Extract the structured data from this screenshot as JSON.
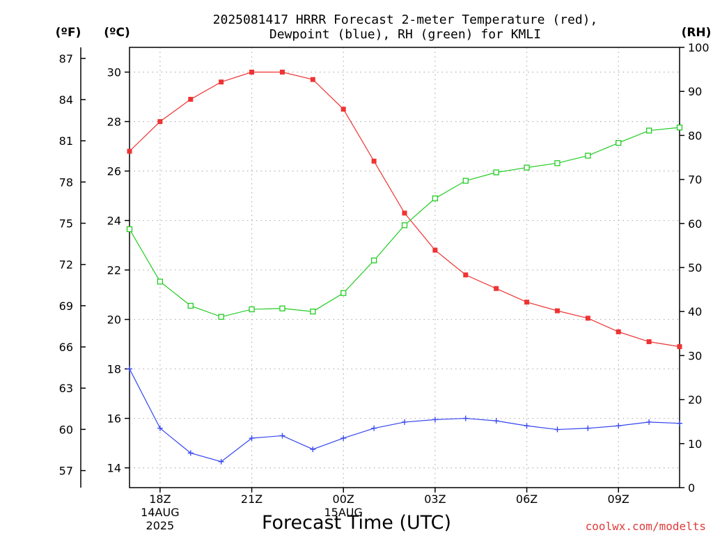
{
  "chart_data": {
    "type": "line",
    "title_lines": [
      "2025081417 HRRR Forecast 2-meter Temperature (red),",
      "Dewpoint (blue), RH (green) for KMLI"
    ],
    "unit_labels": {
      "fahrenheit": "(ºF)",
      "celsius": "(ºC)",
      "rh": "(RH)"
    },
    "xlabel": "Forecast Time (UTC)",
    "credit": "coolwx.com/modelts",
    "x_hours": [
      17,
      18,
      19,
      20,
      21,
      22,
      23,
      24,
      25,
      26,
      27,
      28,
      29,
      30,
      31,
      32,
      33,
      34,
      35
    ],
    "x_range": [
      17,
      35
    ],
    "x_ticks": [
      {
        "hour": 18,
        "lines": [
          "18Z",
          "14AUG",
          "2025"
        ]
      },
      {
        "hour": 21,
        "lines": [
          "21Z"
        ]
      },
      {
        "hour": 24,
        "lines": [
          "00Z",
          "15AUG"
        ]
      },
      {
        "hour": 27,
        "lines": [
          "03Z"
        ]
      },
      {
        "hour": 30,
        "lines": [
          "06Z"
        ]
      },
      {
        "hour": 33,
        "lines": [
          "09Z"
        ]
      }
    ],
    "y_celsius_range": [
      13.2,
      31.0
    ],
    "y_celsius_ticks": [
      "14",
      "16",
      "18",
      "20",
      "22",
      "24",
      "26",
      "28",
      "30"
    ],
    "y_fahrenheit_ticks": [
      "57",
      "60",
      "63",
      "66",
      "69",
      "72",
      "75",
      "78",
      "81",
      "84",
      "87"
    ],
    "y_rh_range": [
      0,
      100
    ],
    "y_rh_ticks": [
      "0",
      "10",
      "20",
      "30",
      "40",
      "50",
      "60",
      "70",
      "80",
      "90",
      "100"
    ],
    "grid": true,
    "series": [
      {
        "name": "Temperature",
        "axis": "celsius",
        "color": "#ee3333",
        "marker": "filled-square",
        "values": [
          26.8,
          28.0,
          28.9,
          29.6,
          30.0,
          30.0,
          29.7,
          28.5,
          26.4,
          24.3,
          22.8,
          21.8,
          21.25,
          20.7,
          20.35,
          20.05,
          19.5,
          19.1,
          18.9
        ]
      },
      {
        "name": "Dewpoint",
        "axis": "celsius",
        "color": "#3344ee",
        "marker": "plus",
        "values": [
          18.0,
          15.6,
          14.6,
          14.25,
          15.2,
          15.3,
          14.75,
          15.2,
          15.6,
          15.85,
          15.95,
          16.0,
          15.9,
          15.7,
          15.55,
          15.6,
          15.7,
          15.85,
          15.8
        ]
      },
      {
        "name": "RH",
        "axis": "rh",
        "color": "#22cc22",
        "marker": "open-square",
        "values": [
          58.7,
          46.8,
          41.3,
          38.8,
          40.5,
          40.7,
          40.0,
          44.2,
          51.6,
          59.6,
          65.7,
          69.7,
          71.6,
          72.7,
          73.7,
          75.4,
          78.3,
          81.1,
          81.8
        ]
      }
    ]
  }
}
